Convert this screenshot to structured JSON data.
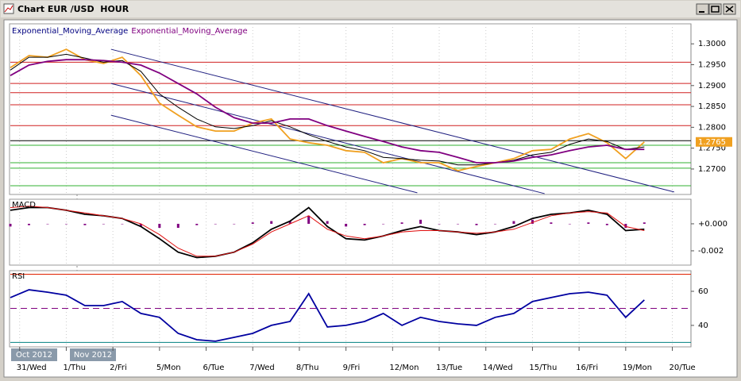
{
  "window": {
    "title": "Chart EUR /USD  HOUR"
  },
  "chart_data": [
    {
      "type": "line",
      "x": [
        -0.2,
        0.2,
        0.6,
        1.0,
        1.4,
        1.8,
        2.2,
        2.6,
        3.0,
        3.4,
        3.8,
        4.2,
        4.6,
        5.0,
        5.4,
        5.8,
        6.2,
        6.6,
        7.0,
        7.4,
        7.8,
        8.2,
        8.6,
        9.0,
        9.4,
        9.8,
        10.2,
        10.6,
        11.0,
        11.4,
        11.8,
        12.2,
        12.6,
        13.0,
        13.4
      ],
      "xlim": [
        -0.2,
        14.4
      ],
      "ylim": [
        1.2639,
        1.3048
      ],
      "yticks": [
        {
          "value": 1.27,
          "label": "1.2700"
        },
        {
          "value": 1.275,
          "label": "1.2750"
        },
        {
          "value": 1.28,
          "label": "1.2800"
        },
        {
          "value": 1.285,
          "label": "1.2850"
        },
        {
          "value": 1.29,
          "label": "1.2900"
        },
        {
          "value": 1.295,
          "label": "1.2950"
        },
        {
          "value": 1.3,
          "label": "1.3000"
        }
      ],
      "series": [
        {
          "color": "#f0a020",
          "values": [
            1.2943,
            1.2972,
            1.2968,
            1.2987,
            1.2962,
            1.2953,
            1.2968,
            1.2924,
            1.2858,
            1.2829,
            1.2801,
            1.2791,
            1.2791,
            1.281,
            1.282,
            1.2772,
            1.2763,
            1.2757,
            1.2744,
            1.274,
            1.2715,
            1.2725,
            1.2715,
            1.2715,
            1.2696,
            1.2706,
            1.2715,
            1.2725,
            1.2744,
            1.2747,
            1.2772,
            1.2785,
            1.2763,
            1.2725,
            1.2765
          ]
        },
        {
          "name": "Exponential_Moving_Average",
          "color": "#000000",
          "values": [
            1.2937,
            1.2968,
            1.2968,
            1.2975,
            1.2966,
            1.2956,
            1.296,
            1.2934,
            1.288,
            1.2848,
            1.282,
            1.2801,
            1.2797,
            1.2804,
            1.2816,
            1.2801,
            1.2782,
            1.2766,
            1.2753,
            1.2744,
            1.2728,
            1.2725,
            1.2721,
            1.2719,
            1.271,
            1.271,
            1.2715,
            1.2721,
            1.2734,
            1.274,
            1.2759,
            1.2772,
            1.2766,
            1.2747,
            1.2753
          ]
        },
        {
          "name": "Exponential_Moving_Average",
          "color": "#800080",
          "values": [
            1.2924,
            1.2949,
            1.2958,
            1.2962,
            1.2962,
            1.296,
            1.2956,
            1.2949,
            1.293,
            1.2905,
            1.288,
            1.2848,
            1.2823,
            1.281,
            1.281,
            1.282,
            1.282,
            1.2804,
            1.2791,
            1.2778,
            1.2766,
            1.2753,
            1.2744,
            1.274,
            1.2728,
            1.2715,
            1.2715,
            1.2719,
            1.2728,
            1.2734,
            1.2744,
            1.2753,
            1.2757,
            1.2747,
            1.2747
          ]
        }
      ],
      "levels": [
        {
          "value": 1.2956,
          "color": "#d02020"
        },
        {
          "value": 1.2905,
          "color": "#d02020"
        },
        {
          "value": 1.2883,
          "color": "#d02020"
        },
        {
          "value": 1.2854,
          "color": "#d02020"
        },
        {
          "value": 1.2804,
          "color": "#d02020"
        },
        {
          "value": 1.2768,
          "color": "#000000"
        },
        {
          "value": 1.2757,
          "color": "#30b030"
        },
        {
          "value": 1.2715,
          "color": "#30b030"
        },
        {
          "value": 1.2702,
          "color": "#30b030"
        },
        {
          "value": 1.266,
          "color": "#30b030"
        }
      ],
      "trendlines": [
        {
          "color": "#202080",
          "x": [
            1.96,
            14.04
          ],
          "values": [
            1.2987,
            1.2645
          ]
        },
        {
          "color": "#202080",
          "x": [
            1.96,
            11.26
          ],
          "values": [
            1.2905,
            1.2641
          ]
        },
        {
          "color": "#202080",
          "x": [
            1.96,
            8.53
          ],
          "values": [
            1.2829,
            1.2643
          ]
        }
      ],
      "last_price": {
        "value": 1.2765,
        "label": "1.2765"
      }
    },
    {
      "type": "line",
      "label": "MACD",
      "x": [
        -0.2,
        0.2,
        0.6,
        1.0,
        1.4,
        1.8,
        2.2,
        2.6,
        3.0,
        3.4,
        3.8,
        4.2,
        4.6,
        5.0,
        5.4,
        5.8,
        6.2,
        6.6,
        7.0,
        7.4,
        7.8,
        8.2,
        8.6,
        9.0,
        9.4,
        9.8,
        10.2,
        10.6,
        11.0,
        11.4,
        11.8,
        12.2,
        12.6,
        13.0,
        13.4
      ],
      "xlim": [
        -0.2,
        14.4
      ],
      "ylim": [
        -0.00306,
        0.00182
      ],
      "yticks": [
        {
          "value": 0,
          "label": "+0.000"
        },
        {
          "value": -0.002,
          "label": "-0.002"
        }
      ],
      "histogram": {
        "color": "#800080",
        "values": [
          -0.0002,
          -0.0001,
          0,
          0,
          -0.0001,
          0,
          0,
          -0.0002,
          -0.0003,
          -0.0003,
          -0.0001,
          0,
          0,
          0.0001,
          0.0002,
          0.0002,
          0.0006,
          0.0002,
          -0.0002,
          -0.0001,
          0,
          0.0001,
          0.0003,
          0,
          0,
          -0.0001,
          0,
          0.0002,
          0.0003,
          0.0001,
          0,
          0.0001,
          -0.0001,
          -0.0003,
          0.0001
        ]
      },
      "series": [
        {
          "color": "#000000",
          "values": [
            0.001,
            0.0012,
            0.0012,
            0.001,
            0.0007,
            0.0006,
            0.0004,
            -0.0002,
            -0.0011,
            -0.0021,
            -0.0025,
            -0.0024,
            -0.0021,
            -0.0014,
            -0.0004,
            0.0002,
            0.0012,
            -0.0002,
            -0.0011,
            -0.0012,
            -0.0009,
            -0.0005,
            -0.0002,
            -0.0005,
            -0.0006,
            -0.0008,
            -0.0006,
            -0.0002,
            0.0004,
            0.0007,
            0.0008,
            0.001,
            0.0007,
            -0.0005,
            -0.0004
          ]
        },
        {
          "color": "#e01010",
          "values": [
            0.0012,
            0.0013,
            0.0012,
            0.001,
            0.0008,
            0.0006,
            0.0004,
            0,
            -0.0008,
            -0.0018,
            -0.0024,
            -0.0024,
            -0.0021,
            -0.0015,
            -0.0006,
            0,
            0.0006,
            -0.0004,
            -0.0009,
            -0.0011,
            -0.0009,
            -0.0006,
            -0.0005,
            -0.0005,
            -0.0006,
            -0.0007,
            -0.0006,
            -0.0004,
            0.0001,
            0.0006,
            0.0008,
            0.0009,
            0.0008,
            -0.0002,
            -0.0005
          ]
        }
      ]
    },
    {
      "type": "line",
      "label": "RSI",
      "x": [
        -0.2,
        0.2,
        0.6,
        1.0,
        1.4,
        1.8,
        2.2,
        2.6,
        3.0,
        3.4,
        3.8,
        4.2,
        4.6,
        5.0,
        5.4,
        5.8,
        6.2,
        6.6,
        7.0,
        7.4,
        7.8,
        8.2,
        8.6,
        9.0,
        9.4,
        9.8,
        10.2,
        10.6,
        11.0,
        11.4,
        11.8,
        12.2,
        12.6,
        13.0,
        13.4
      ],
      "xlim": [
        -0.2,
        14.4
      ],
      "ylim": [
        27.4,
        72.1
      ],
      "yticks": [
        40,
        60
      ],
      "series": [
        {
          "color": "#0000a0",
          "values": [
            56.3,
            60.9,
            59.5,
            57.7,
            51.6,
            51.6,
            54.0,
            47.0,
            44.7,
            35.3,
            31.6,
            30.7,
            33.0,
            35.3,
            40.0,
            42.3,
            58.6,
            39.1,
            40.0,
            42.3,
            47.0,
            40.0,
            44.7,
            42.3,
            40.9,
            40.0,
            44.7,
            47.0,
            54.0,
            56.3,
            58.6,
            59.5,
            57.7,
            44.7,
            54.9
          ]
        }
      ],
      "levels": [
        {
          "value": 70,
          "color": "#e02000"
        },
        {
          "value": 50,
          "color": "#800080",
          "dashed": true
        },
        {
          "value": 30,
          "color": "#008080"
        }
      ],
      "xticks": [
        {
          "value": 0,
          "label": "31/Wed"
        },
        {
          "value": 1,
          "label": "1/Thu"
        },
        {
          "value": 2,
          "label": "2/Fri"
        },
        {
          "value": 3,
          "label": "5/Mon"
        },
        {
          "value": 4,
          "label": "6/Tue"
        },
        {
          "value": 5,
          "label": "7/Wed"
        },
        {
          "value": 6,
          "label": "8/Thu"
        },
        {
          "value": 7,
          "label": "9/Fri"
        },
        {
          "value": 8,
          "label": "12/Mon"
        },
        {
          "value": 9,
          "label": "13/Tue"
        },
        {
          "value": 10,
          "label": "14/Wed"
        },
        {
          "value": 11,
          "label": "15/Thu"
        },
        {
          "value": 12,
          "label": "16/Fri"
        },
        {
          "value": 13,
          "label": "19/Mon"
        },
        {
          "value": 14,
          "label": "20/Tue"
        }
      ],
      "period_labels": [
        "Oct 2012",
        "Nov 2012"
      ]
    }
  ]
}
